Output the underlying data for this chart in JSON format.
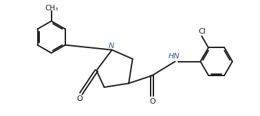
{
  "bg_color": "#ffffff",
  "line_color": "#1a1a1a",
  "text_color": "#1a1a1a",
  "bond_lw": 1.4,
  "font_size": 7.5,
  "fig_width": 3.78,
  "fig_height": 1.69,
  "dpi": 100,
  "xlim": [
    0,
    10
  ],
  "ylim": [
    0,
    4.47
  ]
}
